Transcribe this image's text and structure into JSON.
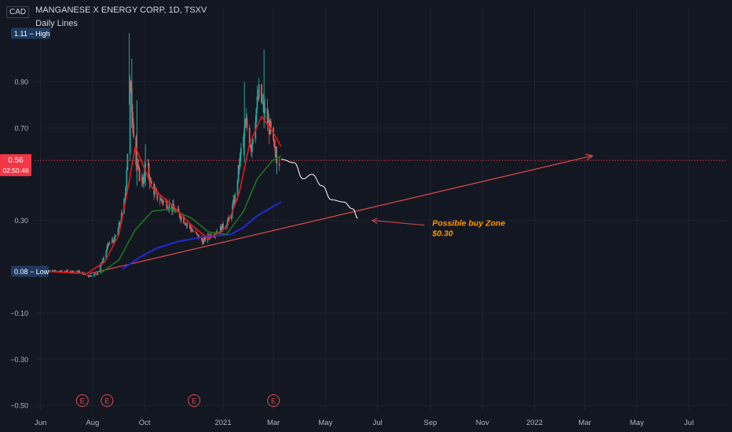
{
  "header": {
    "currency": "CAD",
    "symbol_title": "MANGANESE X ENERGY CORP, 1D, TSXV",
    "indicator_name": "Daily Lines"
  },
  "colors": {
    "background": "#131722",
    "grid": "#1e222d",
    "up": "#26a69a",
    "down": "#ef5350",
    "ma_fast": "#e21a1a",
    "ma_mid": "#1e7a1e",
    "ma_slow": "#1f2bd6",
    "trendline": "#e04b4b",
    "projection": "#ffffff",
    "price_badge": "#f23645",
    "extreme_badge": "#1e3a5f",
    "earnings": "#e04b4b"
  },
  "chart_data": {
    "type": "candlestick",
    "title": "MANGANESE X ENERGY CORP, 1D, TSXV",
    "y_ticks": [
      0.9,
      0.7,
      0.3,
      -0.1,
      -0.3,
      -0.5
    ],
    "y_tick_labels": [
      "0.90",
      "0.70",
      "0.30",
      "−0.10",
      "−0.30",
      "−0.50"
    ],
    "ylim": [
      -0.52,
      1.22
    ],
    "x_start": "2020-05-25",
    "x_end": "2022-08-15",
    "x_ticks": [
      {
        "date": "2020-06-01",
        "label": "Jun"
      },
      {
        "date": "2020-08-01",
        "label": "Aug"
      },
      {
        "date": "2020-10-01",
        "label": "Oct"
      },
      {
        "date": "2021-01-01",
        "label": "2021"
      },
      {
        "date": "2021-03-01",
        "label": "Mar"
      },
      {
        "date": "2021-05-01",
        "label": "May"
      },
      {
        "date": "2021-07-01",
        "label": "Jul"
      },
      {
        "date": "2021-09-01",
        "label": "Sep"
      },
      {
        "date": "2021-11-01",
        "label": "Nov"
      },
      {
        "date": "2022-01-01",
        "label": "2022"
      },
      {
        "date": "2022-03-01",
        "label": "Mar"
      },
      {
        "date": "2022-05-01",
        "label": "May"
      },
      {
        "date": "2022-07-01",
        "label": "Jul"
      }
    ],
    "high": {
      "value": 1.11,
      "label": "1.11 − High"
    },
    "low": {
      "value": 0.08,
      "label": "0.08 − Low"
    },
    "last_price": {
      "value": 0.56,
      "label": "0.56",
      "countdown": "02:50:46"
    },
    "price_path": [
      {
        "date": "2020-05-28",
        "value": 0.08
      },
      {
        "date": "2020-06-20",
        "value": 0.08
      },
      {
        "date": "2020-07-15",
        "value": 0.08
      },
      {
        "date": "2020-07-27",
        "value": 0.06
      },
      {
        "date": "2020-08-06",
        "value": 0.07
      },
      {
        "date": "2020-08-12",
        "value": 0.12
      },
      {
        "date": "2020-08-20",
        "value": 0.2
      },
      {
        "date": "2020-08-27",
        "value": 0.22
      },
      {
        "date": "2020-09-03",
        "value": 0.3
      },
      {
        "date": "2020-09-08",
        "value": 0.4
      },
      {
        "date": "2020-09-11",
        "value": 0.6
      },
      {
        "date": "2020-09-14",
        "value": 0.88
      },
      {
        "date": "2020-09-17",
        "value": 0.75
      },
      {
        "date": "2020-09-21",
        "value": 0.55
      },
      {
        "date": "2020-09-24",
        "value": 0.5
      },
      {
        "date": "2020-09-29",
        "value": 0.47
      },
      {
        "date": "2020-10-03",
        "value": 0.56
      },
      {
        "date": "2020-10-08",
        "value": 0.46
      },
      {
        "date": "2020-10-16",
        "value": 0.4
      },
      {
        "date": "2020-10-28",
        "value": 0.37
      },
      {
        "date": "2020-11-10",
        "value": 0.33
      },
      {
        "date": "2020-11-25",
        "value": 0.26
      },
      {
        "date": "2020-12-08",
        "value": 0.21
      },
      {
        "date": "2020-12-18",
        "value": 0.24
      },
      {
        "date": "2020-12-28",
        "value": 0.26
      },
      {
        "date": "2021-01-08",
        "value": 0.3
      },
      {
        "date": "2021-01-15",
        "value": 0.4
      },
      {
        "date": "2021-01-22",
        "value": 0.6
      },
      {
        "date": "2021-01-28",
        "value": 0.72
      },
      {
        "date": "2021-02-03",
        "value": 0.62
      },
      {
        "date": "2021-02-08",
        "value": 0.76
      },
      {
        "date": "2021-02-12",
        "value": 0.85
      },
      {
        "date": "2021-02-16",
        "value": 0.8
      },
      {
        "date": "2021-02-22",
        "value": 0.73
      },
      {
        "date": "2021-02-26",
        "value": 0.68
      },
      {
        "date": "2021-03-03",
        "value": 0.58
      },
      {
        "date": "2021-03-08",
        "value": 0.56
      }
    ],
    "spikes": [
      {
        "date": "2020-09-13",
        "high": 1.11,
        "low": 0.8
      },
      {
        "date": "2020-09-16",
        "high": 1.0,
        "low": 0.7
      },
      {
        "date": "2020-09-22",
        "high": 0.82,
        "low": 0.45
      },
      {
        "date": "2020-10-02",
        "high": 0.63,
        "low": 0.45
      },
      {
        "date": "2021-02-18",
        "high": 1.04,
        "low": 0.7
      },
      {
        "date": "2021-01-26",
        "high": 0.9,
        "low": 0.55
      },
      {
        "date": "2021-03-05",
        "high": 0.62,
        "low": 0.5
      }
    ],
    "ma_fast": [
      {
        "date": "2020-06-05",
        "value": 0.08
      },
      {
        "date": "2020-07-25",
        "value": 0.07
      },
      {
        "date": "2020-08-15",
        "value": 0.12
      },
      {
        "date": "2020-09-01",
        "value": 0.24
      },
      {
        "date": "2020-09-12",
        "value": 0.45
      },
      {
        "date": "2020-09-20",
        "value": 0.62
      },
      {
        "date": "2020-09-28",
        "value": 0.55
      },
      {
        "date": "2020-10-10",
        "value": 0.44
      },
      {
        "date": "2020-11-01",
        "value": 0.37
      },
      {
        "date": "2020-11-25",
        "value": 0.28
      },
      {
        "date": "2020-12-15",
        "value": 0.22
      },
      {
        "date": "2021-01-05",
        "value": 0.27
      },
      {
        "date": "2021-01-20",
        "value": 0.42
      },
      {
        "date": "2021-02-01",
        "value": 0.63
      },
      {
        "date": "2021-02-15",
        "value": 0.75
      },
      {
        "date": "2021-03-01",
        "value": 0.68
      },
      {
        "date": "2021-03-10",
        "value": 0.62
      }
    ],
    "ma_mid": [
      {
        "date": "2020-08-10",
        "value": 0.07
      },
      {
        "date": "2020-09-01",
        "value": 0.13
      },
      {
        "date": "2020-09-20",
        "value": 0.26
      },
      {
        "date": "2020-10-10",
        "value": 0.34
      },
      {
        "date": "2020-11-01",
        "value": 0.35
      },
      {
        "date": "2020-11-25",
        "value": 0.31
      },
      {
        "date": "2020-12-15",
        "value": 0.25
      },
      {
        "date": "2021-01-05",
        "value": 0.24
      },
      {
        "date": "2021-01-25",
        "value": 0.34
      },
      {
        "date": "2021-02-10",
        "value": 0.48
      },
      {
        "date": "2021-02-28",
        "value": 0.56
      },
      {
        "date": "2021-03-10",
        "value": 0.58
      }
    ],
    "ma_slow": [
      {
        "date": "2020-09-05",
        "value": 0.09
      },
      {
        "date": "2020-09-25",
        "value": 0.14
      },
      {
        "date": "2020-10-15",
        "value": 0.18
      },
      {
        "date": "2020-11-10",
        "value": 0.21
      },
      {
        "date": "2020-12-10",
        "value": 0.23
      },
      {
        "date": "2021-01-10",
        "value": 0.24
      },
      {
        "date": "2021-01-25",
        "value": 0.27
      },
      {
        "date": "2021-02-10",
        "value": 0.32
      },
      {
        "date": "2021-02-28",
        "value": 0.36
      },
      {
        "date": "2021-03-10",
        "value": 0.38
      }
    ],
    "trendline": {
      "from": {
        "date": "2020-07-28",
        "value": 0.07
      },
      "to": {
        "date": "2022-03-10",
        "value": 0.58
      }
    },
    "projection": [
      {
        "date": "2021-03-10",
        "value": 0.565
      },
      {
        "date": "2021-03-25",
        "value": 0.55
      },
      {
        "date": "2021-04-05",
        "value": 0.48
      },
      {
        "date": "2021-04-15",
        "value": 0.5
      },
      {
        "date": "2021-04-27",
        "value": 0.45
      },
      {
        "date": "2021-05-08",
        "value": 0.39
      },
      {
        "date": "2021-05-22",
        "value": 0.38
      },
      {
        "date": "2021-06-02",
        "value": 0.35
      },
      {
        "date": "2021-06-08",
        "value": 0.31
      }
    ],
    "annotation": {
      "lines": [
        "Possible buy Zone",
        "$0.30"
      ],
      "arrow_from": {
        "date": "2021-08-25",
        "value": 0.28
      },
      "arrow_to": {
        "date": "2021-06-25",
        "value": 0.3
      }
    },
    "earnings": [
      {
        "date": "2020-07-20",
        "label": "E"
      },
      {
        "date": "2020-08-18",
        "label": "E"
      },
      {
        "date": "2020-11-28",
        "label": "E"
      },
      {
        "date": "2021-03-01",
        "label": "E"
      }
    ]
  }
}
